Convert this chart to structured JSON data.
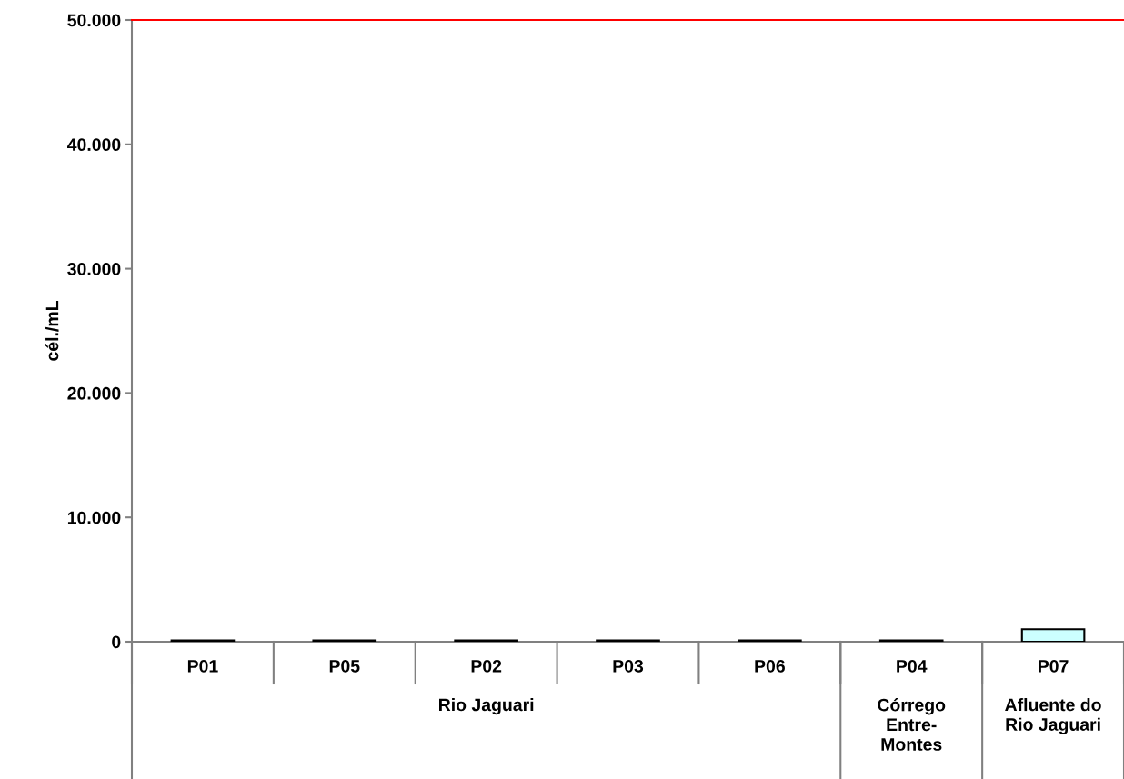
{
  "chart_data": {
    "type": "bar",
    "ylabel": "cél./mL",
    "categories": [
      "P01",
      "P05",
      "P02",
      "P03",
      "P06",
      "P04",
      "P07"
    ],
    "values": [
      100,
      100,
      100,
      100,
      100,
      100,
      1000
    ],
    "color": "#ccffff",
    "ylim": [
      0,
      50000
    ],
    "yticks": [
      {
        "value": 0,
        "label": "0"
      },
      {
        "value": 10000,
        "label": "10.000"
      },
      {
        "value": 20000,
        "label": "20.000"
      },
      {
        "value": 30000,
        "label": "30.000"
      },
      {
        "value": 40000,
        "label": "40.000"
      },
      {
        "value": 50000,
        "label": "50.000"
      }
    ],
    "ref_lines": [
      {
        "axis": "y",
        "value": 50000,
        "color": "#ff0000"
      }
    ],
    "annotations": [
      "Rio Jaguari",
      "Córrego\nEntre-\nMontes",
      "Afluente do\nRio Jaguari"
    ],
    "grid": false,
    "legend": false
  }
}
